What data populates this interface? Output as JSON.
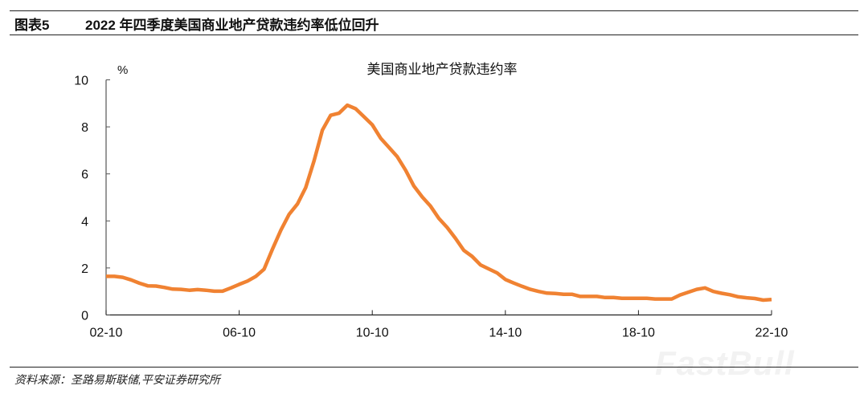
{
  "header": {
    "figure_label": "图表5",
    "title": "2022 年四季度美国商业地产贷款违约率低位回升"
  },
  "source": "资料来源：圣路易斯联储,平安证券研究所",
  "watermark": "FastBull",
  "chart_data": {
    "type": "line",
    "title": "美国商业地产贷款违约率",
    "ylabel": "%",
    "xlabel": "",
    "ylim": [
      0,
      10
    ],
    "yticks": [
      "0",
      "2",
      "4",
      "6",
      "8",
      "10"
    ],
    "xticks": [
      "02-10",
      "06-10",
      "10-10",
      "14-10",
      "18-10",
      "22-10"
    ],
    "grid": false,
    "legend": "none",
    "color": "#f08232",
    "x": [
      "02-10",
      "03-01",
      "03-04",
      "03-07",
      "03-10",
      "04-01",
      "04-04",
      "04-07",
      "04-10",
      "05-01",
      "05-04",
      "05-07",
      "05-10",
      "06-01",
      "06-04",
      "06-07",
      "06-10",
      "07-01",
      "07-04",
      "07-07",
      "07-10",
      "08-01",
      "08-04",
      "08-07",
      "08-10",
      "09-01",
      "09-04",
      "09-07",
      "09-10",
      "10-01",
      "10-04",
      "10-07",
      "10-10",
      "11-01",
      "11-04",
      "11-07",
      "11-10",
      "12-01",
      "12-04",
      "12-07",
      "12-10",
      "13-01",
      "13-04",
      "13-07",
      "13-10",
      "14-01",
      "14-04",
      "14-07",
      "14-10",
      "15-01",
      "15-04",
      "15-07",
      "15-10",
      "16-01",
      "16-04",
      "16-07",
      "16-10",
      "17-01",
      "17-04",
      "17-07",
      "17-10",
      "18-01",
      "18-04",
      "18-07",
      "18-10",
      "19-01",
      "19-04",
      "19-07",
      "19-10",
      "20-01",
      "20-04",
      "20-07",
      "20-10",
      "21-01",
      "21-04",
      "21-07",
      "21-10",
      "22-01",
      "22-04",
      "22-07",
      "22-10"
    ],
    "values": [
      1.64,
      1.64,
      1.6,
      1.49,
      1.35,
      1.24,
      1.23,
      1.17,
      1.1,
      1.09,
      1.05,
      1.08,
      1.05,
      1.01,
      1.01,
      1.15,
      1.3,
      1.44,
      1.64,
      1.95,
      2.8,
      3.6,
      4.28,
      4.72,
      5.42,
      6.56,
      7.86,
      8.49,
      8.58,
      8.92,
      8.77,
      8.43,
      8.09,
      7.52,
      7.13,
      6.73,
      6.16,
      5.48,
      5.02,
      4.63,
      4.11,
      3.72,
      3.26,
      2.75,
      2.49,
      2.13,
      1.96,
      1.79,
      1.51,
      1.36,
      1.22,
      1.09,
      1.0,
      0.93,
      0.91,
      0.88,
      0.88,
      0.79,
      0.79,
      0.79,
      0.74,
      0.74,
      0.71,
      0.71,
      0.71,
      0.71,
      0.68,
      0.68,
      0.68,
      0.85,
      0.97,
      1.09,
      1.15,
      1.0,
      0.92,
      0.86,
      0.77,
      0.73,
      0.7,
      0.63,
      0.66
    ]
  }
}
